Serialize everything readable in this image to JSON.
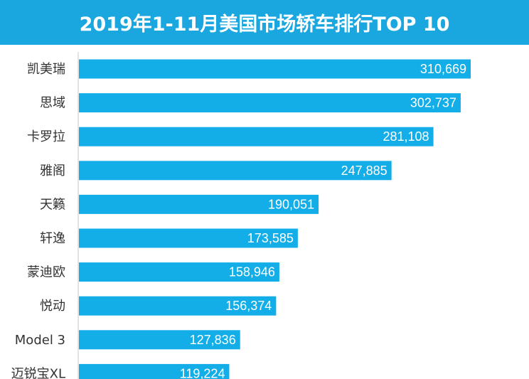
{
  "chart_data": {
    "type": "bar",
    "orientation": "horizontal",
    "title": "2019年1-11月美国市场轿车排行TOP 10",
    "categories": [
      "凯美瑞",
      "思域",
      "卡罗拉",
      "雅阁",
      "天籁",
      "轩逸",
      "蒙迪欧",
      "悦动",
      "Model 3",
      "迈锐宝XL"
    ],
    "values": [
      310669,
      302737,
      281108,
      247885,
      190051,
      173585,
      158946,
      156374,
      127836,
      119224
    ],
    "value_labels": [
      "310,669",
      "302,737",
      "281,108",
      "247,885",
      "190,051",
      "173,585",
      "158,946",
      "156,374",
      "127,836",
      "119,224"
    ],
    "xlim": [
      0,
      360000
    ],
    "grid": false,
    "legend": "none",
    "colors": {
      "bar": "#13aee8",
      "title_bg": "#1aa7e0",
      "axis": "#c8c8c8"
    }
  }
}
